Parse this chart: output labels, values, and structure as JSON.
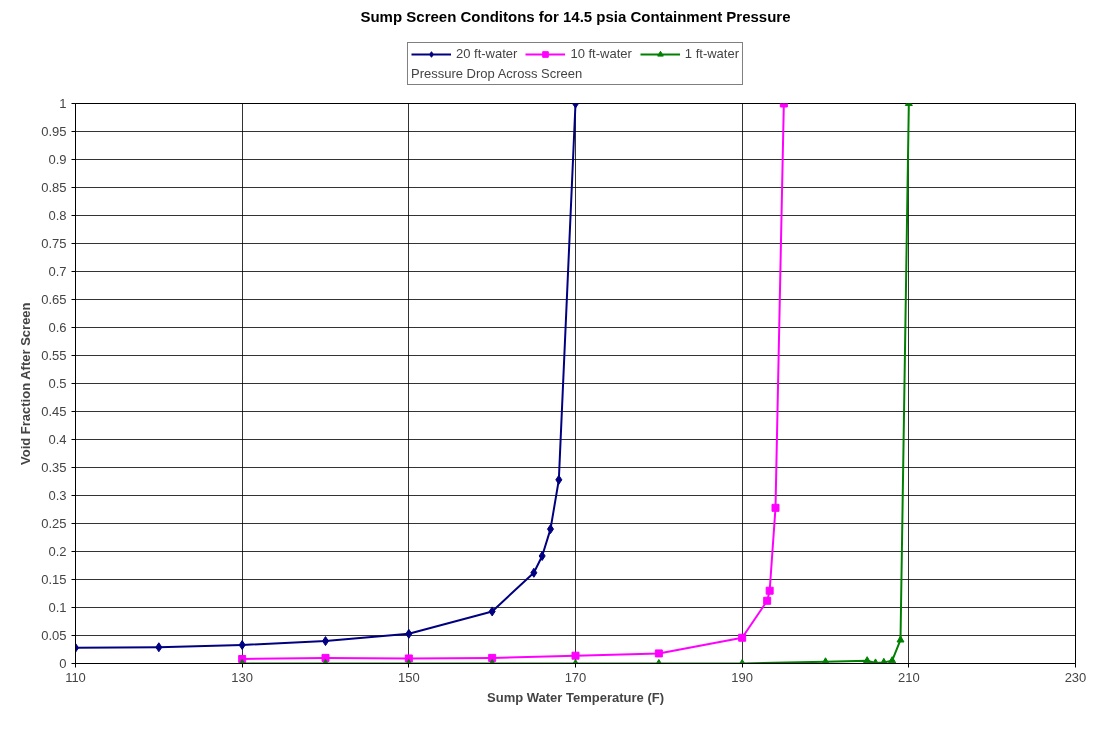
{
  "chart_data": {
    "type": "line",
    "title": "Sump Screen Conditons for 14.5 psia Containment Pressure",
    "xlabel": "Sump Water Temperature (F)",
    "ylabel": "Void Fraction After Screen",
    "legend_title": "Pressure Drop Across Screen",
    "legend": "top",
    "grid": true,
    "xlim": [
      110,
      230
    ],
    "xticks": [
      110,
      130,
      150,
      170,
      190,
      210,
      230
    ],
    "ylim": [
      0,
      1
    ],
    "yticks": [
      0,
      0.05,
      0.1,
      0.15,
      0.2,
      0.25,
      0.3,
      0.35,
      0.4,
      0.45,
      0.5,
      0.55,
      0.6,
      0.65,
      0.7,
      0.75,
      0.8,
      0.85,
      0.9,
      0.95,
      1
    ],
    "series": [
      {
        "name": "20 ft-water",
        "color": "#000080",
        "marker": "diamond",
        "x": [
          110,
          120,
          130,
          140,
          150,
          160,
          165,
          166,
          167,
          168,
          170
        ],
        "values": [
          0.028,
          0.029,
          0.033,
          0.04,
          0.053,
          0.093,
          0.162,
          0.192,
          0.24,
          0.328,
          1.0
        ]
      },
      {
        "name": "10 ft-water",
        "color": "#ff00ff",
        "marker": "square",
        "x": [
          130,
          140,
          150,
          160,
          170,
          180,
          190,
          193,
          193.3,
          194,
          195
        ],
        "values": [
          0.008,
          0.01,
          0.009,
          0.01,
          0.014,
          0.018,
          0.046,
          0.112,
          0.13,
          0.278,
          1.0
        ]
      },
      {
        "name": "1 ft-water",
        "color": "#008000",
        "marker": "triangle",
        "x": [
          130,
          140,
          150,
          160,
          170,
          180,
          190,
          200,
          205,
          206,
          207,
          208,
          209,
          210
        ],
        "values": [
          0,
          0,
          0,
          0,
          0,
          0,
          0,
          0.003,
          0.005,
          0.001,
          0.002,
          0.005,
          0.042,
          1.0
        ]
      }
    ]
  }
}
